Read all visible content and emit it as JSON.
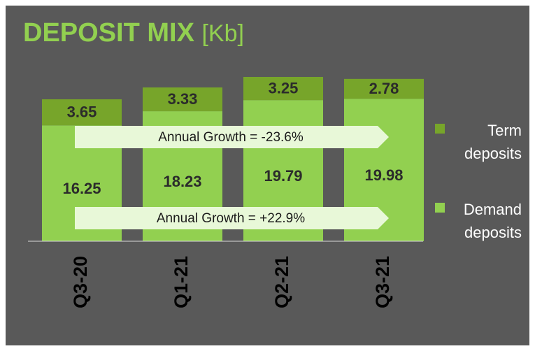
{
  "chart_data": {
    "type": "bar",
    "stacked": true,
    "title": "DEPOSIT MIX",
    "unit": "[Kb]",
    "categories": [
      "Q3-20",
      "Q1-21",
      "Q2-21",
      "Q3-21"
    ],
    "series": [
      {
        "name": "Demand deposits",
        "color": "#92d050",
        "values": [
          16.25,
          18.23,
          19.79,
          19.98
        ]
      },
      {
        "name": "Term deposits",
        "color": "#77a52a",
        "values": [
          3.65,
          3.33,
          3.25,
          2.78
        ]
      }
    ],
    "annotations": [
      "Annual Growth = -23.6%",
      "Annual Growth = +22.9%"
    ]
  }
}
